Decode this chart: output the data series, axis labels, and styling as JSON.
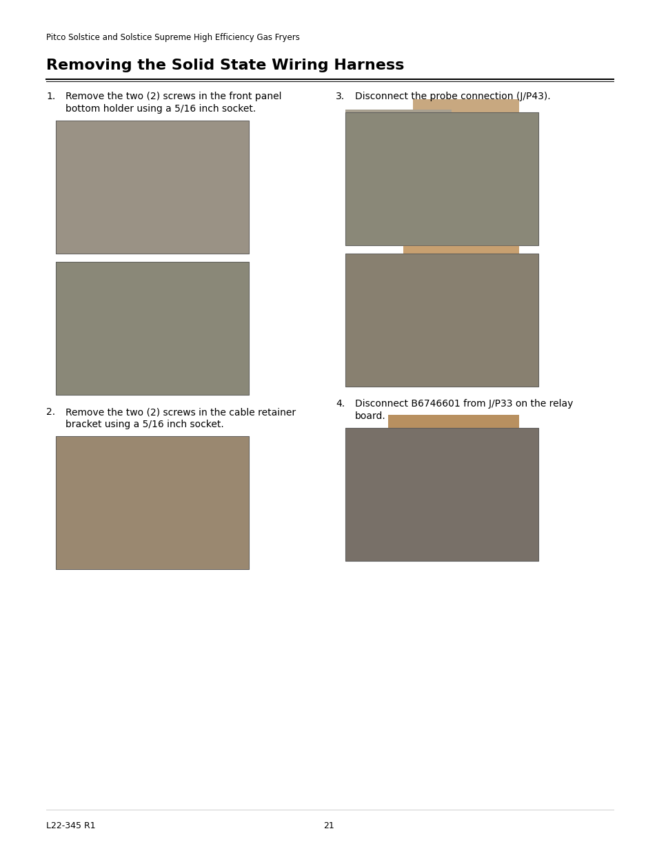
{
  "page_background": "#ffffff",
  "header_text": "Pitco Solstice and Solstice Supreme High Efficiency Gas Fryers",
  "header_fontsize": 8.5,
  "title": "Removing the Solid State Wiring Harness",
  "title_fontsize": 16,
  "footer_left": "L22-345 R1",
  "footer_center": "21",
  "footer_fontsize": 9,
  "items": [
    {
      "num": "1.",
      "text": "Remove the two (2) screws in the front panel\nbottom holder using a 5/16 inch socket.",
      "images": [
        "img_1a",
        "img_1b"
      ],
      "col": 0
    },
    {
      "num": "2.",
      "text": "Remove the two (2) screws in the cable retainer\nbracket using a 5/16 inch socket.",
      "images": [
        "img_2"
      ],
      "col": 0
    },
    {
      "num": "3.",
      "text": "Disconnect the probe connection (J/P43).",
      "images": [
        "img_3a",
        "img_3b"
      ],
      "col": 1
    },
    {
      "num": "4.",
      "text": "Disconnect B6746601 from J/P33 on the relay\nboard.",
      "images": [
        "img_4"
      ],
      "col": 1
    }
  ],
  "image_colors": {
    "img_1a": "#8a8070",
    "img_1b": "#7a7868",
    "img_2": "#9a8060",
    "img_3a": "#888070",
    "img_3b": "#807870",
    "img_4": "#787068"
  },
  "text_color": "#000000",
  "line_color": "#000000"
}
